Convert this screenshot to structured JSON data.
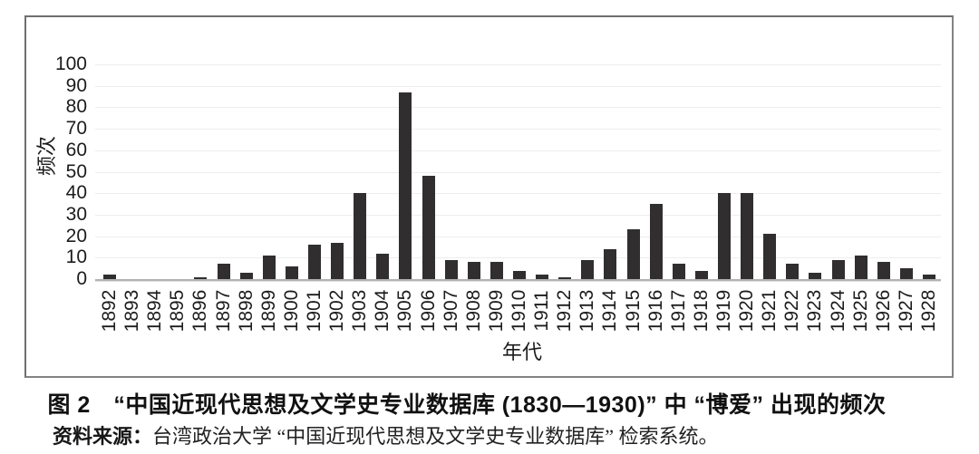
{
  "figure": {
    "caption": "图 2　“中国近现代思想及文学史专业数据库 (1830—1930)” 中 “博爱” 出现的频次",
    "source_label": "资料来源：",
    "source_text": "台湾政治大学 “中国近现代思想及文学史专业数据库” 检索系统。"
  },
  "chart_data": {
    "type": "bar",
    "title": "",
    "xlabel": "年代",
    "ylabel": "频次",
    "ylim": [
      0,
      100
    ],
    "ytick_step": 10,
    "grid": true,
    "legend": "none",
    "bar_color": "#312e2f",
    "categories": [
      "1892",
      "1893",
      "1894",
      "1895",
      "1896",
      "1897",
      "1898",
      "1899",
      "1900",
      "1901",
      "1902",
      "1903",
      "1904",
      "1905",
      "1906",
      "1907",
      "1908",
      "1909",
      "1910",
      "1911",
      "1912",
      "1913",
      "1914",
      "1915",
      "1916",
      "1917",
      "1918",
      "1919",
      "1920",
      "1921",
      "1922",
      "1923",
      "1924",
      "1925",
      "1926",
      "1927",
      "1928"
    ],
    "values": [
      2,
      0,
      0,
      0,
      1,
      7,
      3,
      11,
      6,
      16,
      17,
      40,
      12,
      87,
      48,
      9,
      8,
      8,
      4,
      2,
      1,
      9,
      14,
      23,
      35,
      7,
      4,
      40,
      40,
      21,
      7,
      3,
      9,
      11,
      8,
      5,
      2
    ]
  },
  "colors": {
    "bar": "#312e2f",
    "gridline": "#ededed",
    "baseline": "#b2b2b2",
    "frame_border": "#838383",
    "text": "#1c1c1c"
  }
}
